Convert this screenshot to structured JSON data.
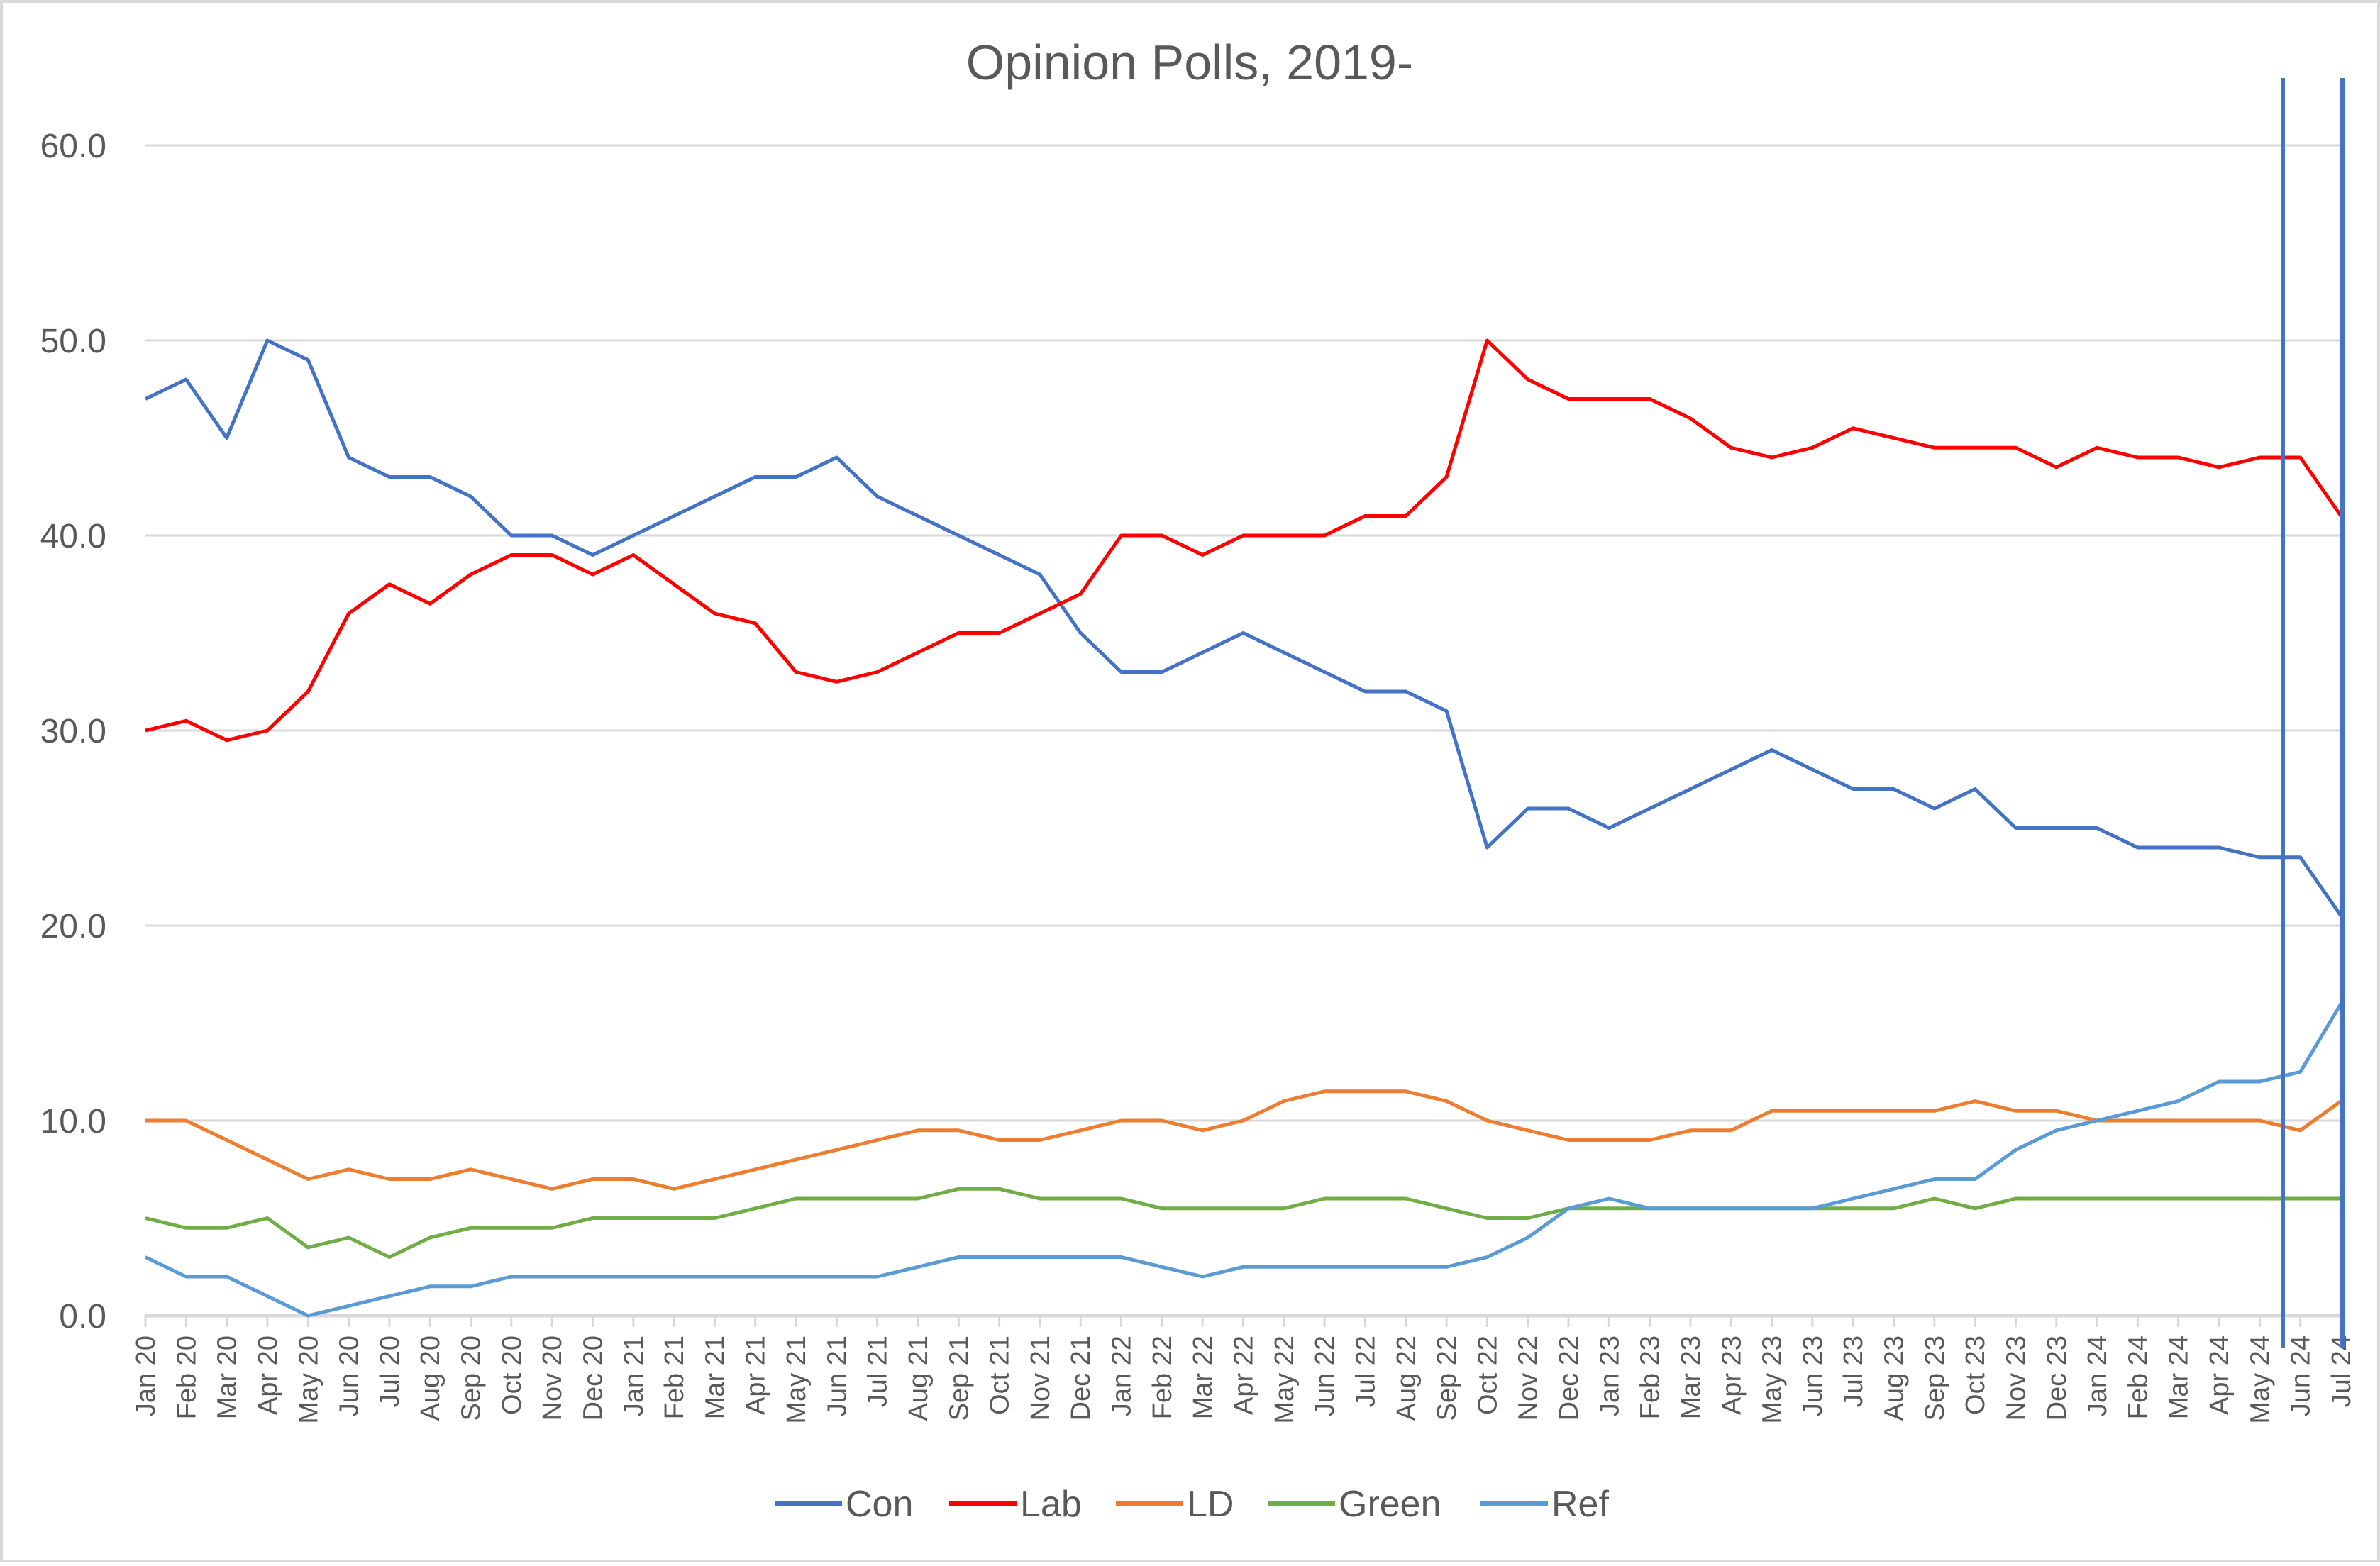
{
  "chart_data": {
    "type": "line",
    "title": "Opinion Polls, 2019-",
    "xlabel": "",
    "ylabel": "",
    "ylim": [
      0,
      60
    ],
    "yticks": [
      "0.0",
      "10.0",
      "20.0",
      "30.0",
      "40.0",
      "50.0",
      "60.0"
    ],
    "grid": true,
    "legend_position": "bottom",
    "x_tick_labels": [
      "Jan 20",
      "Feb 20",
      "Mar 20",
      "Apr 20",
      "May 20",
      "Jun 20",
      "Jul 20",
      "Aug 20",
      "Sep 20",
      "Oct 20",
      "Nov 20",
      "Dec 20",
      "Jan 21",
      "Feb 21",
      "Mar 21",
      "Apr 21",
      "May 21",
      "Jun 21",
      "Jul 21",
      "Aug 21",
      "Sep 21",
      "Oct 21",
      "Nov 21",
      "Dec 21",
      "Jan 22",
      "Feb 22",
      "Mar 22",
      "Apr 22",
      "May 22",
      "Jun 22",
      "Jul 22",
      "Aug 22",
      "Sep 22",
      "Oct 22",
      "Nov 22",
      "Dec 22",
      "Jan 23",
      "Feb 23",
      "Mar 23",
      "Apr 23",
      "May 23",
      "Jun 23",
      "Jul 23",
      "Aug 23",
      "Sep 23",
      "Oct 23",
      "Nov 23",
      "Dec 23",
      "Jan 24",
      "Feb 24",
      "Mar 24",
      "Apr 24",
      "May 24",
      "Jun 24",
      "Jul 24"
    ],
    "series": [
      {
        "name": "Con",
        "color": "#4472C4",
        "values": [
          47,
          48,
          45,
          50,
          49,
          44,
          43,
          43,
          42,
          40,
          40,
          39,
          40,
          41,
          42,
          43,
          43,
          44,
          42,
          41,
          40,
          39,
          38,
          35,
          33,
          33,
          34,
          35,
          34,
          33,
          32,
          32,
          31,
          24,
          26,
          26,
          25,
          26,
          27,
          28,
          29,
          28,
          27,
          27,
          26,
          27,
          25,
          25,
          25,
          24,
          24,
          24,
          23.5,
          23.5,
          20.5
        ]
      },
      {
        "name": "Lab",
        "color": "#FF0000",
        "values": [
          30,
          30.5,
          29.5,
          30,
          32,
          36,
          37.5,
          36.5,
          38,
          39,
          39,
          38,
          39,
          37.5,
          36,
          35.5,
          33,
          32.5,
          33,
          34,
          35,
          35,
          36,
          37,
          40,
          40,
          39,
          40,
          40,
          40,
          41,
          41,
          43,
          50,
          48,
          47,
          47,
          47,
          46,
          44.5,
          44,
          44.5,
          45.5,
          45,
          44.5,
          44.5,
          44.5,
          43.5,
          44.5,
          44,
          44,
          43.5,
          44,
          44,
          41
        ]
      },
      {
        "name": "LD",
        "color": "#ED7D31",
        "values": [
          10,
          10,
          9,
          8,
          7,
          7.5,
          7,
          7,
          7.5,
          7,
          6.5,
          7,
          7,
          6.5,
          7,
          7.5,
          8,
          8.5,
          9,
          9.5,
          9.5,
          9,
          9,
          9.5,
          10,
          10,
          9.5,
          10,
          11,
          11.5,
          11.5,
          11.5,
          11,
          10,
          9.5,
          9,
          9,
          9,
          9.5,
          9.5,
          10.5,
          10.5,
          10.5,
          10.5,
          10.5,
          11,
          10.5,
          10.5,
          10,
          10,
          10,
          10,
          10,
          9.5,
          11
        ]
      },
      {
        "name": "Green",
        "color": "#70AD47",
        "values": [
          5,
          4.5,
          4.5,
          5,
          3.5,
          4,
          3,
          4,
          4.5,
          4.5,
          4.5,
          5,
          5,
          5,
          5,
          5.5,
          6,
          6,
          6,
          6,
          6.5,
          6.5,
          6,
          6,
          6,
          5.5,
          5.5,
          5.5,
          5.5,
          6,
          6,
          6,
          5.5,
          5,
          5,
          5.5,
          5.5,
          5.5,
          5.5,
          5.5,
          5.5,
          5.5,
          5.5,
          5.5,
          6,
          5.5,
          6,
          6,
          6,
          6,
          6,
          6,
          6,
          6,
          6
        ]
      },
      {
        "name": "Ref",
        "color": "#5B9BD5",
        "values": [
          3,
          2,
          2,
          1,
          0,
          0.5,
          1,
          1.5,
          1.5,
          2,
          2,
          2,
          2,
          2,
          2,
          2,
          2,
          2,
          2,
          2.5,
          3,
          3,
          3,
          3,
          3,
          2.5,
          2,
          2.5,
          2.5,
          2.5,
          2.5,
          2.5,
          2.5,
          3,
          4,
          5.5,
          6,
          5.5,
          5.5,
          5.5,
          5.5,
          5.5,
          6,
          6.5,
          7,
          7,
          8.5,
          9.5,
          10,
          10.5,
          11,
          12,
          12,
          12.5,
          16
        ]
      }
    ],
    "vertical_markers": {
      "color": "#4472C4",
      "at": [
        "May 24 (late)",
        "Jul 24"
      ]
    }
  }
}
